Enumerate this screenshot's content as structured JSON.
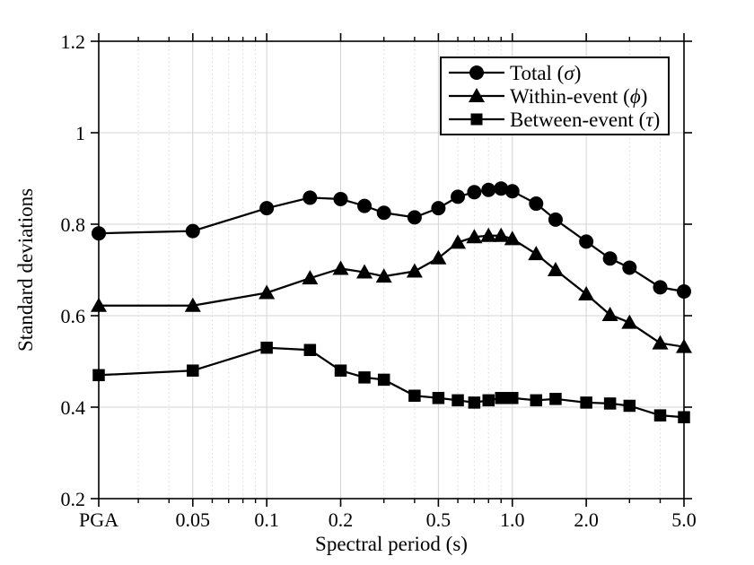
{
  "style": {
    "background": "#ffffff",
    "axis_color": "#000000",
    "series_color": "#000000",
    "grid_major_color": "#d4d4d4",
    "grid_minor_color": "#d9d9d9"
  },
  "axes": {
    "x": {
      "title": "Spectral period (s)",
      "scale": "log",
      "tick_labels": [
        "PGA",
        "0.05",
        "0.1",
        "0.2",
        "0.5",
        "1.0",
        "2.0",
        "5.0"
      ],
      "tick_positions": [
        0.0207,
        0.05,
        0.1,
        0.2,
        0.5,
        1.0,
        2.0,
        5.0
      ],
      "minor_tick_positions": [
        0.03,
        0.04,
        0.06,
        0.07,
        0.08,
        0.09,
        0.3,
        0.4,
        0.6,
        0.7,
        0.8,
        0.9,
        3,
        4
      ]
    },
    "y": {
      "title": "Standard deviations",
      "tick_labels": [
        "0.2",
        "0.4",
        "0.6",
        "0.8",
        "1",
        "1.2"
      ],
      "tick_values": [
        0.2,
        0.4,
        0.6,
        0.8,
        1.0,
        1.2
      ],
      "range": [
        0.2,
        1.2
      ]
    }
  },
  "legend": {
    "items": [
      {
        "prefix": "Total (",
        "symbol": "σ",
        "suffix": ")",
        "marker": "circle"
      },
      {
        "prefix": "Within-event (",
        "symbol": "ϕ",
        "suffix": ")",
        "marker": "triangle"
      },
      {
        "prefix": "Between-event (",
        "symbol": "τ",
        "suffix": ")",
        "marker": "square"
      }
    ]
  },
  "chart_data": {
    "type": "line",
    "xlabel": "Spectral period (s)",
    "ylabel": "Standard deviations",
    "xscale": "log",
    "xlim": [
      0.0207,
      5.0
    ],
    "ylim": [
      0.2,
      1.2
    ],
    "grid": true,
    "legend_position": "top-right",
    "x_labels": [
      "PGA",
      "0.05",
      "0.1",
      "0.15",
      "0.2",
      "0.25",
      "0.3",
      "0.4",
      "0.5",
      "0.6",
      "0.7",
      "0.8",
      "0.9",
      "1.0",
      "1.25",
      "1.5",
      "2.0",
      "2.5",
      "3.0",
      "4.0",
      "5.0"
    ],
    "x_positions": [
      0.0207,
      0.05,
      0.1,
      0.15,
      0.2,
      0.25,
      0.3,
      0.4,
      0.5,
      0.6,
      0.7,
      0.8,
      0.9,
      1.0,
      1.25,
      1.5,
      2.0,
      2.5,
      3.0,
      4.0,
      5.0
    ],
    "series": [
      {
        "name": "Total (σ)",
        "marker": "circle",
        "values": [
          0.78,
          0.785,
          0.835,
          0.858,
          0.855,
          0.84,
          0.825,
          0.815,
          0.835,
          0.86,
          0.87,
          0.875,
          0.878,
          0.872,
          0.845,
          0.81,
          0.762,
          0.725,
          0.705,
          0.662,
          0.653
        ]
      },
      {
        "name": "Within-event (ϕ)",
        "marker": "triangle",
        "values": [
          0.622,
          0.622,
          0.65,
          0.682,
          0.703,
          0.695,
          0.686,
          0.697,
          0.726,
          0.76,
          0.772,
          0.775,
          0.775,
          0.768,
          0.735,
          0.7,
          0.647,
          0.602,
          0.585,
          0.54,
          0.532
        ]
      },
      {
        "name": "Between-event (τ)",
        "marker": "square",
        "values": [
          0.47,
          0.48,
          0.53,
          0.525,
          0.48,
          0.465,
          0.46,
          0.425,
          0.42,
          0.415,
          0.41,
          0.415,
          0.42,
          0.42,
          0.415,
          0.418,
          0.41,
          0.408,
          0.403,
          0.382,
          0.378
        ]
      }
    ]
  }
}
